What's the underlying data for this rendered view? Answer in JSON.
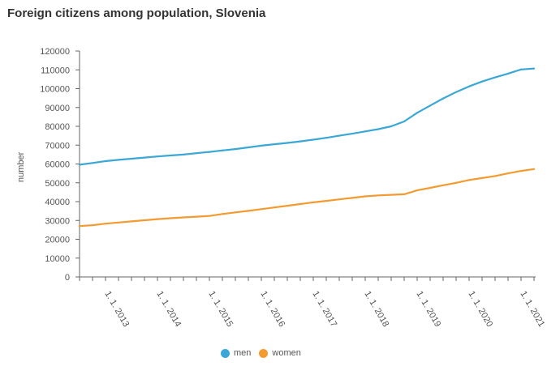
{
  "chart_data": {
    "type": "line",
    "title": "Foreign citizens among population, Slovenia",
    "xlabel": "",
    "ylabel": "number",
    "ylim": [
      0,
      120000
    ],
    "yticks": [
      0,
      10000,
      20000,
      30000,
      40000,
      50000,
      60000,
      70000,
      80000,
      90000,
      100000,
      110000,
      120000
    ],
    "x": [
      "1. 7. 2012",
      "1. 10. 2012",
      "1. 1. 2013",
      "1. 4. 2013",
      "1. 7. 2013",
      "1. 10. 2013",
      "1. 1. 2014",
      "1. 4. 2014",
      "1. 7. 2014",
      "1. 10. 2014",
      "1. 1. 2015",
      "1. 4. 2015",
      "1. 7. 2015",
      "1. 10. 2015",
      "1. 1. 2016",
      "1. 4. 2016",
      "1. 7. 2016",
      "1. 10. 2016",
      "1. 1. 2017",
      "1. 4. 2017",
      "1. 7. 2017",
      "1. 10. 2017",
      "1. 1. 2018",
      "1. 4. 2018",
      "1. 7. 2018",
      "1. 10. 2018",
      "1. 1. 2019",
      "1. 4. 2019",
      "1. 7. 2019",
      "1. 10. 2019",
      "1. 1. 2020",
      "1. 4. 2020",
      "1. 7. 2020",
      "1. 10. 2020",
      "1. 1. 2021",
      "1. 4. 2021"
    ],
    "xtick_labels": [
      "1. 1. 2013",
      "1. 1. 2014",
      "1. 1. 2015",
      "1. 1. 2016",
      "1. 1. 2017",
      "1. 1. 2018",
      "1. 1. 2019",
      "1. 1. 2020",
      "1. 1. 2021"
    ],
    "series": [
      {
        "name": "men",
        "color": "#3aa7d6",
        "values": [
          59600,
          60500,
          61500,
          62200,
          62800,
          63400,
          64000,
          64500,
          65000,
          65700,
          66400,
          67200,
          67900,
          68800,
          69700,
          70500,
          71200,
          72000,
          72900,
          73900,
          75000,
          76100,
          77300,
          78500,
          80000,
          82600,
          87200,
          91000,
          94800,
          98200,
          101200,
          103800,
          106000,
          108000,
          110200,
          110700
        ]
      },
      {
        "name": "women",
        "color": "#f39a31",
        "values": [
          27000,
          27500,
          28300,
          28900,
          29500,
          30100,
          30700,
          31200,
          31600,
          32000,
          32400,
          33400,
          34300,
          35100,
          36000,
          36900,
          37800,
          38700,
          39600,
          40400,
          41200,
          42000,
          42800,
          43300,
          43600,
          43900,
          46000,
          47300,
          48700,
          50000,
          51500,
          52500,
          53600,
          55000,
          56300,
          57300
        ]
      }
    ],
    "grid": false,
    "legend_position": "bottom"
  }
}
